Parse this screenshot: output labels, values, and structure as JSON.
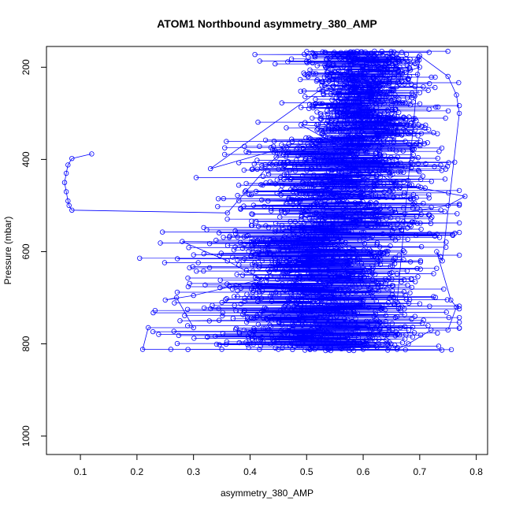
{
  "chart_data": {
    "type": "scatter",
    "title": "ATOM1 Northbound asymmetry_380_AMP",
    "xlabel": "asymmetry_380_AMP",
    "ylabel": "Pressure (mbar)",
    "xlim": [
      0.04,
      0.82
    ],
    "ylim": [
      1040,
      155
    ],
    "y_axis_reversed": true,
    "x_ticks": [
      0.1,
      0.2,
      0.3,
      0.4,
      0.5,
      0.6,
      0.7,
      0.8
    ],
    "x_tick_labels": [
      "0.1",
      "0.2",
      "0.3",
      "0.4",
      "0.5",
      "0.6",
      "0.7",
      "0.8"
    ],
    "y_ticks": [
      200,
      400,
      600,
      800,
      1000
    ],
    "y_tick_labels": [
      "200",
      "400",
      "600",
      "800",
      "1000"
    ],
    "grid": false,
    "series": [
      {
        "color": "#0000ff",
        "marker": "open-circle",
        "connected": true,
        "points_description_sample": [
          [
            0.12,
            388
          ],
          [
            0.085,
            398
          ],
          [
            0.078,
            412
          ],
          [
            0.075,
            430
          ],
          [
            0.072,
            450
          ],
          [
            0.075,
            470
          ],
          [
            0.078,
            490
          ],
          [
            0.08,
            500
          ],
          [
            0.085,
            510
          ],
          [
            0.36,
            516
          ],
          [
            0.46,
            375
          ],
          [
            0.33,
            420
          ],
          [
            0.62,
            165
          ],
          [
            0.66,
            180
          ],
          [
            0.7,
            200
          ],
          [
            0.58,
            250
          ],
          [
            0.55,
            330
          ],
          [
            0.49,
            325
          ],
          [
            0.6,
            400
          ],
          [
            0.65,
            450
          ],
          [
            0.78,
            480
          ],
          [
            0.75,
            500
          ],
          [
            0.52,
            545
          ],
          [
            0.48,
            580
          ],
          [
            0.28,
            578
          ],
          [
            0.36,
            620
          ],
          [
            0.42,
            660
          ],
          [
            0.3,
            695
          ],
          [
            0.25,
            705
          ],
          [
            0.27,
            700
          ],
          [
            0.3,
            765
          ],
          [
            0.22,
            765
          ],
          [
            0.21,
            812
          ],
          [
            0.26,
            812
          ],
          [
            0.35,
            812
          ],
          [
            0.45,
            812
          ],
          [
            0.6,
            812
          ],
          [
            0.66,
            812
          ],
          [
            0.68,
            800
          ],
          [
            0.72,
            770
          ],
          [
            0.75,
            770
          ],
          [
            0.765,
            720
          ],
          [
            0.755,
            705
          ],
          [
            0.73,
            600
          ],
          [
            0.74,
            620
          ],
          [
            0.77,
            300
          ],
          [
            0.765,
            260
          ],
          [
            0.75,
            220
          ],
          [
            0.7,
            175
          ],
          [
            0.66,
            710
          ]
        ]
      }
    ]
  }
}
